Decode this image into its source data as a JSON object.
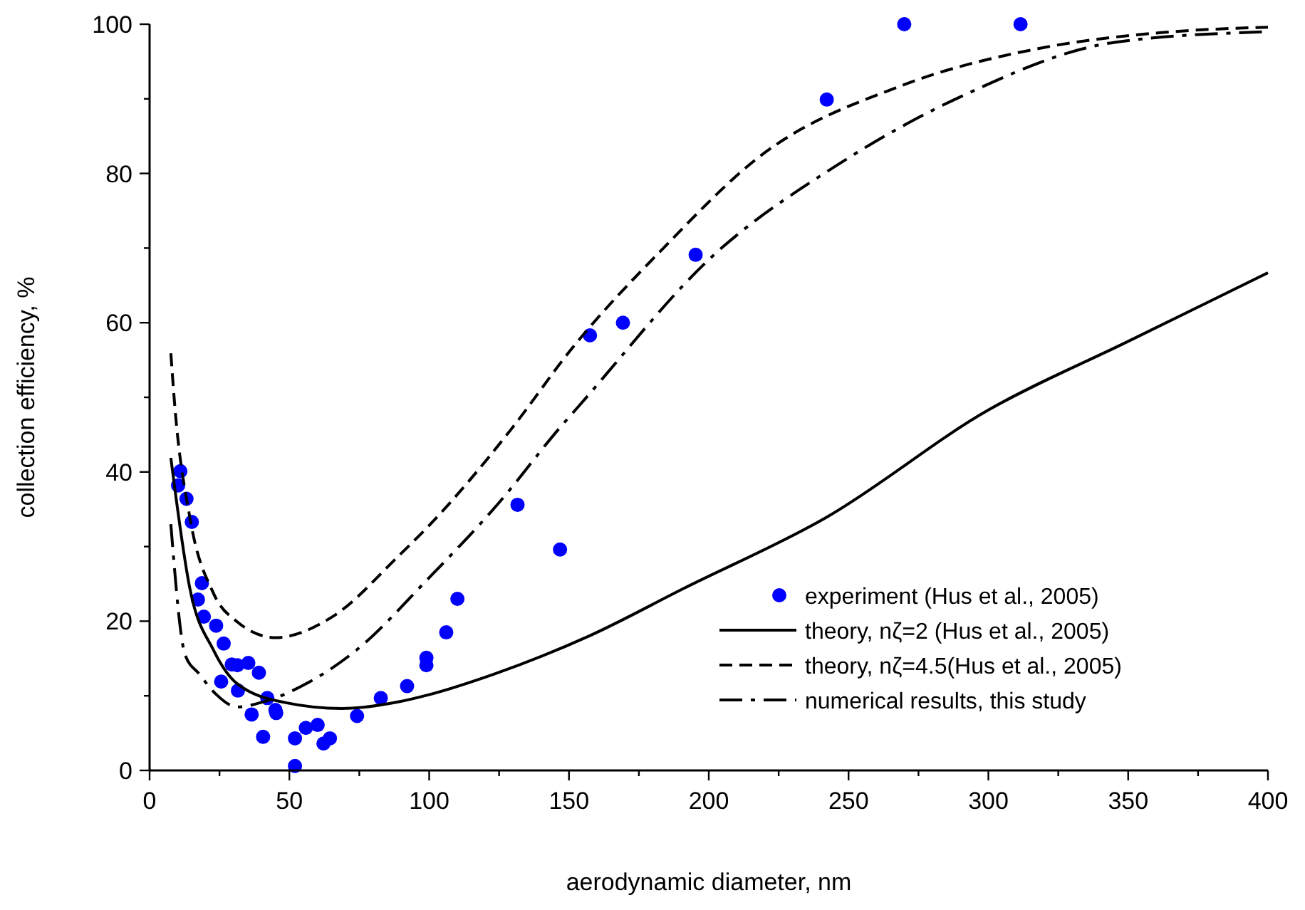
{
  "chart_data": {
    "type": "line",
    "xlabel": "aerodynamic diameter, nm",
    "ylabel": "collection efficiency, %",
    "xlim": [
      0,
      400
    ],
    "ylim": [
      0,
      100
    ],
    "xticks": [
      0,
      {
        "value": 25,
        "label": null
      },
      50,
      {
        "value": 75,
        "label": null
      },
      100,
      {
        "value": 125,
        "label": null
      },
      150,
      {
        "value": 175,
        "label": null
      },
      200,
      {
        "value": 225,
        "label": null
      },
      250,
      {
        "value": 275,
        "label": null
      },
      300,
      {
        "value": 325,
        "label": null
      },
      350,
      {
        "value": 375,
        "label": null
      },
      400
    ],
    "yticks": [
      0,
      {
        "value": 10,
        "label": null
      },
      20,
      {
        "value": 30,
        "label": null
      },
      40,
      {
        "value": 50,
        "label": null
      },
      60,
      {
        "value": 70,
        "label": null
      },
      80,
      {
        "value": 90,
        "label": null
      },
      100
    ],
    "grid": false,
    "legend": "bottom right",
    "series": [
      {
        "name": "experiment (Hus et al., 2005)",
        "type": "scatter",
        "marker": "circle",
        "color": "#0000ff",
        "x": [
          11.0,
          10.2,
          13.2,
          15.1,
          18.7,
          17.3,
          19.4,
          23.8,
          26.5,
          29.4,
          31.4,
          35.3,
          39.1,
          25.6,
          31.6,
          42.1,
          45.0,
          45.3,
          36.5,
          40.6,
          52.0,
          55.9,
          60.1,
          62.2,
          64.5,
          52.0,
          74.2,
          82.7,
          92.1,
          99.0,
          99.0,
          106.1,
          110.1,
          131.6,
          146.8,
          157.5,
          169.3,
          195.3,
          242.2,
          269.9,
          311.5
        ],
        "values": [
          40.1,
          38.2,
          36.4,
          33.3,
          25.1,
          22.9,
          20.6,
          19.4,
          17.0,
          14.2,
          14.1,
          14.4,
          13.1,
          11.9,
          10.7,
          9.7,
          8.1,
          7.7,
          7.5,
          4.5,
          4.3,
          5.7,
          6.1,
          3.6,
          4.3,
          0.6,
          7.3,
          9.7,
          11.3,
          15.1,
          14.1,
          18.5,
          23.0,
          35.6,
          29.6,
          58.3,
          60.0,
          69.1,
          89.9,
          100,
          100
        ]
      },
      {
        "name": "theory, nζ=2 (Hus et al., 2005)",
        "type": "line",
        "marker": "none",
        "line_style": "solid",
        "color": "#000000",
        "x": [
          7.6,
          14.4,
          22.9,
          31.4,
          48.4,
          68.8,
          89.2,
          99.4,
          123.1,
          157.1,
          191.1,
          242,
          300,
          350,
          400
        ],
        "values": [
          41.9,
          24.4,
          16.1,
          11.6,
          9.1,
          8.3,
          9.2,
          10.1,
          12.9,
          18.0,
          24.4,
          33.9,
          48.3,
          57.5,
          66.7
        ]
      },
      {
        "name": "theory, nζ=4.5(Hus et al., 2005)",
        "type": "line",
        "marker": "none",
        "line_style": "dashed",
        "color": "#000000",
        "x": [
          7.6,
          9.0,
          14.4,
          22.9,
          31.4,
          45,
          65.4,
          89.2,
          99.4,
          129.9,
          150.3,
          184.3,
          218.3,
          269.2,
          320.2,
          362.6,
          400
        ],
        "values": [
          55.9,
          48.9,
          33.9,
          23.7,
          19.9,
          17.8,
          20.6,
          28.8,
          32.6,
          46,
          56.2,
          70.2,
          82.3,
          91.8,
          96.9,
          98.9,
          99.6
        ]
      },
      {
        "name": "numerical results, this study",
        "type": "line",
        "marker": "none",
        "line_style": "dashdot",
        "color": "#000000",
        "x": [
          7.6,
          12.7,
          17.8,
          23.8,
          31.4,
          40.8,
          56.9,
          73.9,
          99.4,
          124.8,
          146.9,
          153.7,
          201.3,
          245.4,
          291.3,
          345.6,
          400
        ],
        "values": [
          33,
          15.5,
          12.9,
          10.2,
          8.5,
          9.2,
          11.8,
          16.1,
          25.6,
          35.8,
          46,
          48.9,
          68.9,
          81.0,
          90.5,
          97.6,
          99
        ]
      }
    ]
  }
}
